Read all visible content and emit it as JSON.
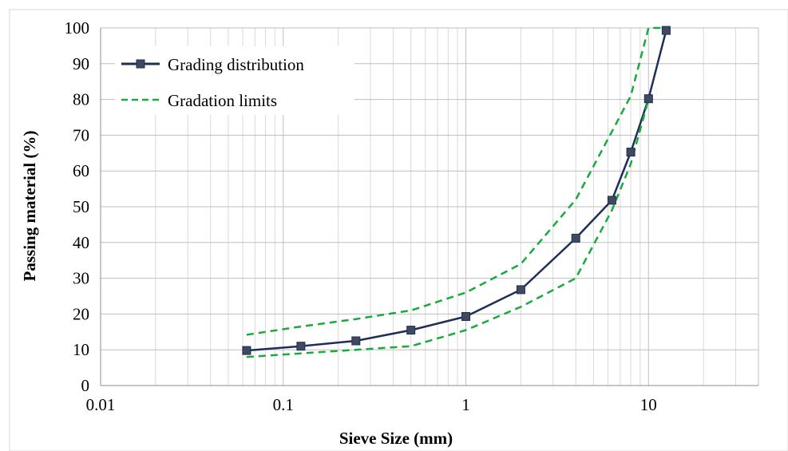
{
  "chart_data": {
    "type": "line",
    "xlabel": "Sieve Size (mm)",
    "ylabel": "Passing material (%)",
    "x_scale": "log",
    "xlim": [
      0.01,
      40
    ],
    "ylim": [
      0,
      100
    ],
    "x_ticks": [
      {
        "value": 0.01,
        "label": "0.01"
      },
      {
        "value": 0.1,
        "label": "0.1"
      },
      {
        "value": 1,
        "label": "1"
      },
      {
        "value": 10,
        "label": "10"
      }
    ],
    "y_ticks": [
      0,
      10,
      20,
      30,
      40,
      50,
      60,
      70,
      80,
      90,
      100
    ],
    "grid": true,
    "legend_position": "top-left",
    "series": [
      {
        "name": "Grading distribution",
        "color": "#1f2d5a",
        "line_style": "solid",
        "marker": "square",
        "x": [
          0.063,
          0.125,
          0.25,
          0.5,
          1,
          2,
          4,
          6.3,
          8,
          10,
          12.5
        ],
        "y": [
          9.8,
          11,
          12.5,
          15.5,
          19.3,
          26.8,
          41.2,
          51.8,
          65.3,
          80.2,
          99.3
        ]
      },
      {
        "name": "Gradation limits",
        "color": "#1aaa3c",
        "line_style": "dashed",
        "marker": "none",
        "x": [
          0.063,
          0.125,
          0.25,
          0.5,
          1,
          2,
          4,
          6.3,
          8,
          10,
          12.5
        ],
        "y": [
          14.2,
          16.5,
          18.6,
          21,
          26,
          34,
          52,
          71,
          81,
          100,
          100
        ]
      },
      {
        "name": "",
        "color": "#1aaa3c",
        "line_style": "dashed",
        "marker": "none",
        "x": [
          0.063,
          0.125,
          0.25,
          0.5,
          1,
          2,
          4,
          6.3,
          8,
          10
        ],
        "y": [
          8,
          9,
          10,
          11,
          15.5,
          22,
          30,
          49,
          62,
          80
        ]
      }
    ]
  }
}
